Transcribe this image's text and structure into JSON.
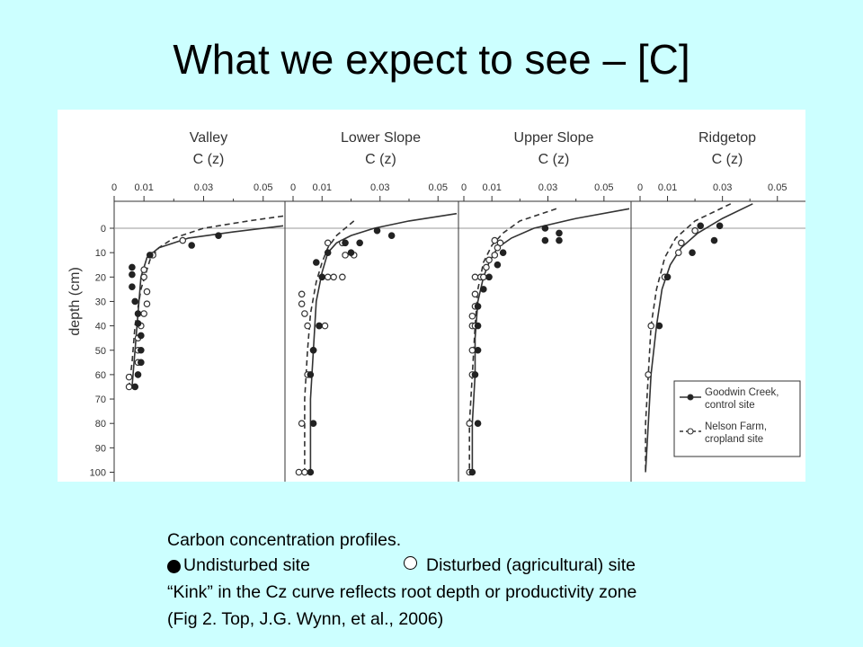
{
  "slide": {
    "title": "What we expect to see – [C]",
    "caption": {
      "line1": "Carbon concentration profiles.",
      "undisturbed": "Undisturbed site",
      "disturbed": "Disturbed (agricultural) site",
      "line3": "“Kink” in the Cz curve reflects root depth or productivity zone",
      "line4": "(Fig 2. Top,  J.G. Wynn, et al., 2006)"
    }
  },
  "colors": {
    "background": "#ccffff",
    "figure": "#ffffff",
    "ink": "#333333"
  },
  "chart_data": {
    "type": "scatter",
    "ylabel": "depth (cm)",
    "y_ticks": [
      0,
      10,
      20,
      30,
      40,
      50,
      60,
      70,
      80,
      90,
      100
    ],
    "x_ticks": [
      0,
      0.01,
      0.03,
      0.05
    ],
    "x_tick_labels": [
      "0",
      "0.01",
      "0.03",
      "0.05"
    ],
    "ylim": [
      100,
      -5
    ],
    "legend": {
      "position": "bottom-right",
      "entries": [
        {
          "marker": "filled",
          "line": "solid",
          "label_lines": [
            "Goodwin Creek,",
            "control site"
          ]
        },
        {
          "marker": "open",
          "line": "dashed",
          "label_lines": [
            "Nelson Farm,",
            "cropland site"
          ]
        }
      ]
    },
    "panels": [
      {
        "title": "Valley",
        "subtitle": "C (z)",
        "control_points": [
          [
            0.035,
            3
          ],
          [
            0.026,
            7
          ],
          [
            0.012,
            11
          ],
          [
            0.006,
            16
          ],
          [
            0.006,
            19
          ],
          [
            0.006,
            24
          ],
          [
            0.007,
            30
          ],
          [
            0.008,
            35
          ],
          [
            0.008,
            39
          ],
          [
            0.009,
            44
          ],
          [
            0.009,
            50
          ],
          [
            0.009,
            55
          ],
          [
            0.008,
            60
          ],
          [
            0.007,
            65
          ]
        ],
        "cropland_points": [
          [
            0.023,
            5
          ],
          [
            0.013,
            11
          ],
          [
            0.01,
            17
          ],
          [
            0.01,
            20
          ],
          [
            0.011,
            26
          ],
          [
            0.011,
            31
          ],
          [
            0.01,
            35
          ],
          [
            0.009,
            40
          ],
          [
            0.008,
            45
          ],
          [
            0.008,
            50
          ],
          [
            0.008,
            55
          ],
          [
            0.005,
            61
          ],
          [
            0.005,
            65
          ]
        ],
        "control_curve": [
          [
            0.06,
            -1
          ],
          [
            0.04,
            1.5
          ],
          [
            0.025,
            4
          ],
          [
            0.015,
            8
          ],
          [
            0.011,
            12
          ],
          [
            0.009,
            20
          ],
          [
            0.008,
            35
          ],
          [
            0.007,
            50
          ],
          [
            0.006,
            65
          ]
        ],
        "cropland_curve": [
          [
            0.062,
            -5
          ],
          [
            0.045,
            -3
          ],
          [
            0.03,
            0
          ],
          [
            0.02,
            4
          ],
          [
            0.015,
            8
          ],
          [
            0.012,
            13
          ],
          [
            0.009,
            25
          ],
          [
            0.007,
            40
          ],
          [
            0.006,
            55
          ],
          [
            0.005,
            65
          ]
        ]
      },
      {
        "title": "Lower Slope",
        "subtitle": "C (z)",
        "control_points": [
          [
            0.029,
            1
          ],
          [
            0.034,
            3
          ],
          [
            0.018,
            6
          ],
          [
            0.023,
            6
          ],
          [
            0.012,
            10
          ],
          [
            0.02,
            10
          ],
          [
            0.008,
            14
          ],
          [
            0.01,
            20
          ],
          [
            0.009,
            40
          ],
          [
            0.007,
            50
          ],
          [
            0.006,
            60
          ],
          [
            0.007,
            80
          ],
          [
            0.006,
            100
          ]
        ],
        "cropland_points": [
          [
            0.012,
            6
          ],
          [
            0.017,
            6
          ],
          [
            0.018,
            11
          ],
          [
            0.021,
            11
          ],
          [
            0.012,
            20
          ],
          [
            0.014,
            20
          ],
          [
            0.017,
            20
          ],
          [
            0.003,
            27
          ],
          [
            0.003,
            31
          ],
          [
            0.004,
            35
          ],
          [
            0.005,
            40
          ],
          [
            0.009,
            40
          ],
          [
            0.011,
            40
          ],
          [
            0.007,
            50
          ],
          [
            0.005,
            60
          ],
          [
            0.003,
            80
          ],
          [
            0.004,
            100
          ],
          [
            0.002,
            100
          ]
        ],
        "control_curve": [
          [
            0.06,
            -6
          ],
          [
            0.04,
            -3
          ],
          [
            0.028,
            0
          ],
          [
            0.02,
            3
          ],
          [
            0.015,
            6
          ],
          [
            0.012,
            10
          ],
          [
            0.01,
            18
          ],
          [
            0.008,
            30
          ],
          [
            0.007,
            50
          ],
          [
            0.006,
            70
          ],
          [
            0.006,
            100
          ]
        ],
        "cropland_curve": [
          [
            0.021,
            -3
          ],
          [
            0.015,
            3
          ],
          [
            0.012,
            8
          ],
          [
            0.01,
            14
          ],
          [
            0.008,
            22
          ],
          [
            0.006,
            35
          ],
          [
            0.005,
            50
          ],
          [
            0.004,
            70
          ],
          [
            0.004,
            100
          ]
        ]
      },
      {
        "title": "Upper Slope",
        "subtitle": "C (z)",
        "control_points": [
          [
            0.029,
            0
          ],
          [
            0.034,
            2
          ],
          [
            0.029,
            5
          ],
          [
            0.034,
            5
          ],
          [
            0.014,
            10
          ],
          [
            0.012,
            15
          ],
          [
            0.009,
            20
          ],
          [
            0.007,
            25
          ],
          [
            0.005,
            32
          ],
          [
            0.005,
            40
          ],
          [
            0.005,
            50
          ],
          [
            0.004,
            60
          ],
          [
            0.005,
            80
          ],
          [
            0.003,
            100
          ]
        ],
        "cropland_points": [
          [
            0.011,
            5
          ],
          [
            0.013,
            6
          ],
          [
            0.012,
            8
          ],
          [
            0.011,
            11
          ],
          [
            0.009,
            13
          ],
          [
            0.008,
            16
          ],
          [
            0.004,
            20
          ],
          [
            0.006,
            20
          ],
          [
            0.007,
            20
          ],
          [
            0.004,
            27
          ],
          [
            0.004,
            32
          ],
          [
            0.003,
            36
          ],
          [
            0.003,
            40
          ],
          [
            0.004,
            40
          ],
          [
            0.003,
            50
          ],
          [
            0.003,
            60
          ],
          [
            0.002,
            80
          ],
          [
            0.002,
            100
          ]
        ],
        "control_curve": [
          [
            0.06,
            -8
          ],
          [
            0.04,
            -4
          ],
          [
            0.025,
            0
          ],
          [
            0.017,
            4
          ],
          [
            0.012,
            8
          ],
          [
            0.009,
            14
          ],
          [
            0.007,
            20
          ],
          [
            0.005,
            30
          ],
          [
            0.004,
            45
          ],
          [
            0.004,
            60
          ],
          [
            0.003,
            80
          ],
          [
            0.003,
            100
          ]
        ],
        "cropland_curve": [
          [
            0.033,
            -8
          ],
          [
            0.02,
            -3
          ],
          [
            0.014,
            2
          ],
          [
            0.01,
            7
          ],
          [
            0.007,
            14
          ],
          [
            0.005,
            25
          ],
          [
            0.004,
            40
          ],
          [
            0.003,
            60
          ],
          [
            0.002,
            80
          ],
          [
            0.002,
            100
          ]
        ]
      },
      {
        "title": "Ridgetop",
        "subtitle": "C (z)",
        "control_points": [
          [
            0.022,
            -1
          ],
          [
            0.029,
            -1
          ],
          [
            0.027,
            5
          ],
          [
            0.019,
            10
          ],
          [
            0.01,
            20
          ],
          [
            0.007,
            40
          ]
        ],
        "cropland_points": [
          [
            0.02,
            1
          ],
          [
            0.015,
            6
          ],
          [
            0.014,
            10
          ],
          [
            0.009,
            20
          ],
          [
            0.004,
            40
          ],
          [
            0.003,
            60
          ]
        ],
        "control_curve": [
          [
            0.041,
            -10
          ],
          [
            0.03,
            -4
          ],
          [
            0.021,
            2
          ],
          [
            0.015,
            8
          ],
          [
            0.011,
            15
          ],
          [
            0.008,
            25
          ],
          [
            0.006,
            40
          ],
          [
            0.004,
            60
          ],
          [
            0.003,
            80
          ],
          [
            0.002,
            100
          ]
        ],
        "cropland_curve": [
          [
            0.033,
            -10
          ],
          [
            0.02,
            -3
          ],
          [
            0.013,
            4
          ],
          [
            0.009,
            12
          ],
          [
            0.006,
            25
          ],
          [
            0.004,
            40
          ],
          [
            0.003,
            60
          ],
          [
            0.002,
            80
          ],
          [
            0.002,
            100
          ]
        ]
      }
    ]
  }
}
